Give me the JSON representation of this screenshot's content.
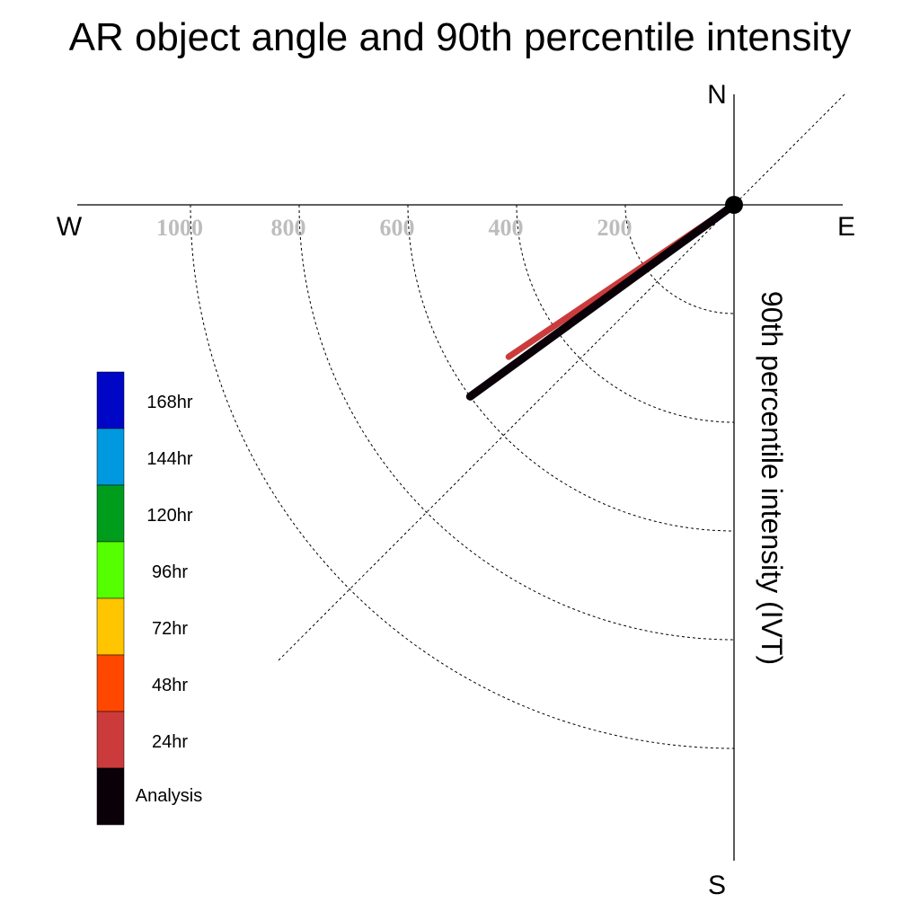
{
  "title": "AR object angle and 90th percentile intensity",
  "chart_data": {
    "type": "polar-quadrant",
    "title": "AR object angle and 90th percentile intensity",
    "ylabel": "90th percentile intensity (IVT)",
    "compass": {
      "north": "N",
      "south": "S",
      "east": "E",
      "west": "W"
    },
    "radial_range": [
      0,
      1200
    ],
    "radial_ticks": [
      200,
      400,
      600,
      800,
      1000
    ],
    "radial_tick_labels": [
      "200",
      "400",
      "600",
      "800",
      "1000"
    ],
    "grid": true,
    "reference_line_angle_deg": 45,
    "series": [
      {
        "name": "Analysis",
        "angle_deg": 36,
        "intensity": 600,
        "color": "#0a0008"
      },
      {
        "name": "24hr",
        "angle_deg": 34,
        "intensity": 500,
        "color": "#cc3b3b"
      }
    ],
    "legend": {
      "placement": "left",
      "entries": [
        {
          "label": "168hr",
          "color": "#0006c6"
        },
        {
          "label": "144hr",
          "color": "#0099df"
        },
        {
          "label": "120hr",
          "color": "#009d1c"
        },
        {
          "label": "96hr",
          "color": "#56ff00"
        },
        {
          "label": "72hr",
          "color": "#ffc500"
        },
        {
          "label": "48hr",
          "color": "#ff4700"
        },
        {
          "label": "24hr",
          "color": "#cc3b3b"
        },
        {
          "label": "Analysis",
          "color": "#0a0008"
        }
      ]
    }
  }
}
